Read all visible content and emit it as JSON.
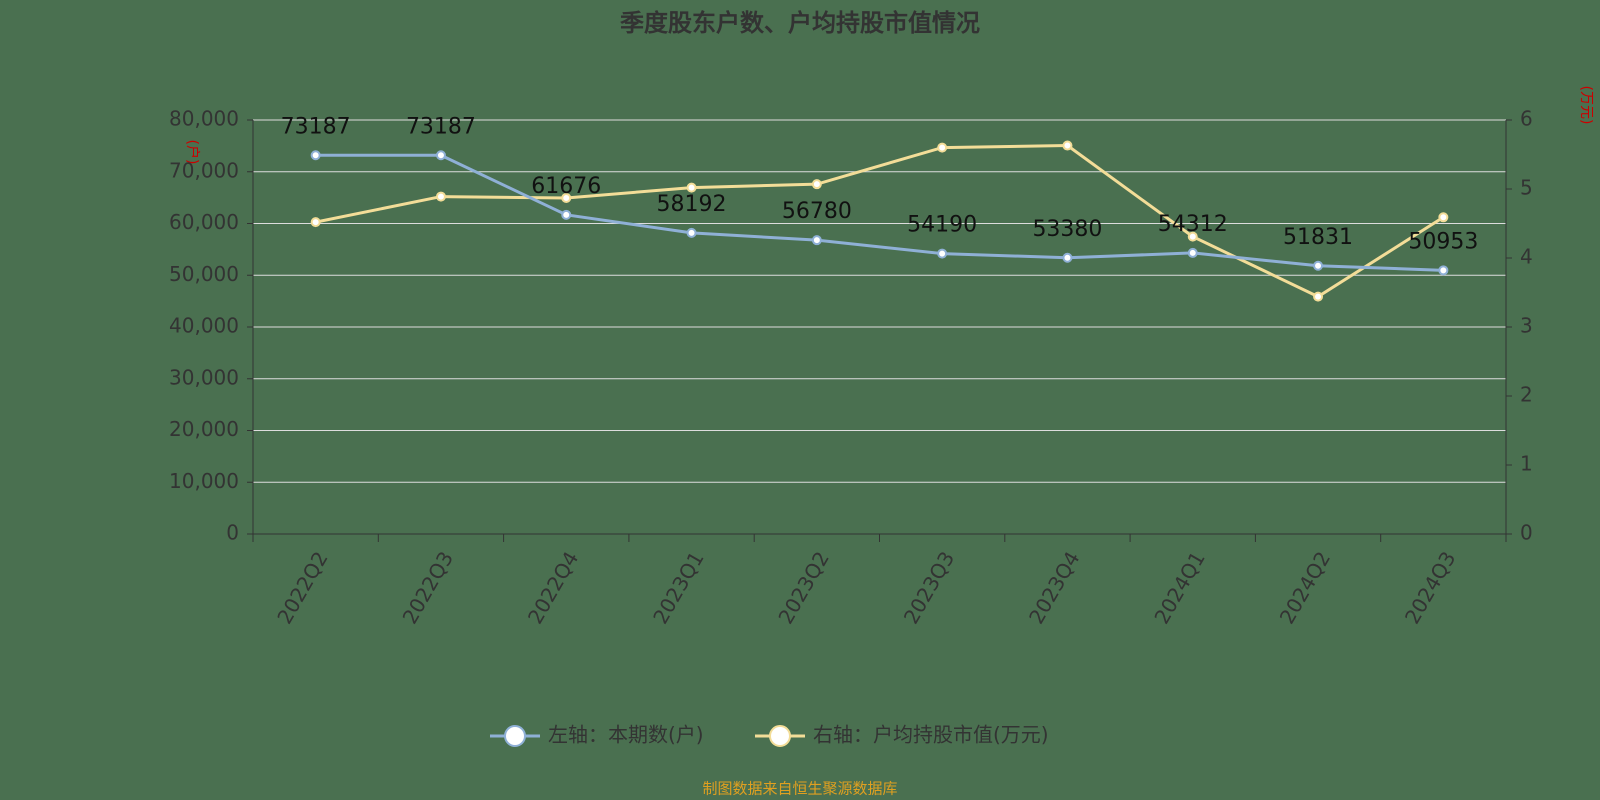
{
  "chart_data": {
    "type": "line",
    "title": "季度股东户数、户均持股市值情况",
    "y_label": "(户)",
    "y2_label": "(万元)",
    "footer": "制图数据来自恒生聚源数据库",
    "categories": [
      "2022Q2",
      "2022Q3",
      "2022Q4",
      "2023Q1",
      "2023Q2",
      "2023Q3",
      "2023Q4",
      "2024Q1",
      "2024Q2",
      "2024Q3"
    ],
    "series": [
      {
        "name": "左轴：本期数(户)",
        "color": "#8fb0d6",
        "values": [
          73187,
          73187,
          61676,
          58192,
          56780,
          54190,
          53380,
          54312,
          51831,
          50953
        ]
      },
      {
        "name": "右轴：户均持股市值(万元)",
        "color": "#f3dd98",
        "axis": "y2",
        "values": [
          4.52,
          4.89,
          4.87,
          5.02,
          5.07,
          5.6,
          5.63,
          4.31,
          3.44,
          4.59
        ]
      }
    ],
    "ylim": [
      0,
      80000
    ],
    "yticks": [
      0,
      {
        "value": 10000,
        "label": "10,000"
      },
      {
        "value": 20000,
        "label": "20,000"
      },
      {
        "value": 30000,
        "label": "30,000"
      },
      {
        "value": 40000,
        "label": "40,000"
      },
      {
        "value": 50000,
        "label": "50,000"
      },
      {
        "value": 60000,
        "label": "60,000"
      },
      {
        "value": 70000,
        "label": "70,000"
      },
      {
        "value": 80000,
        "label": "80,000"
      }
    ],
    "y2lim": [
      0,
      6
    ],
    "y2ticks": [
      0,
      1,
      2,
      3,
      4,
      5,
      6
    ],
    "grid": true
  }
}
